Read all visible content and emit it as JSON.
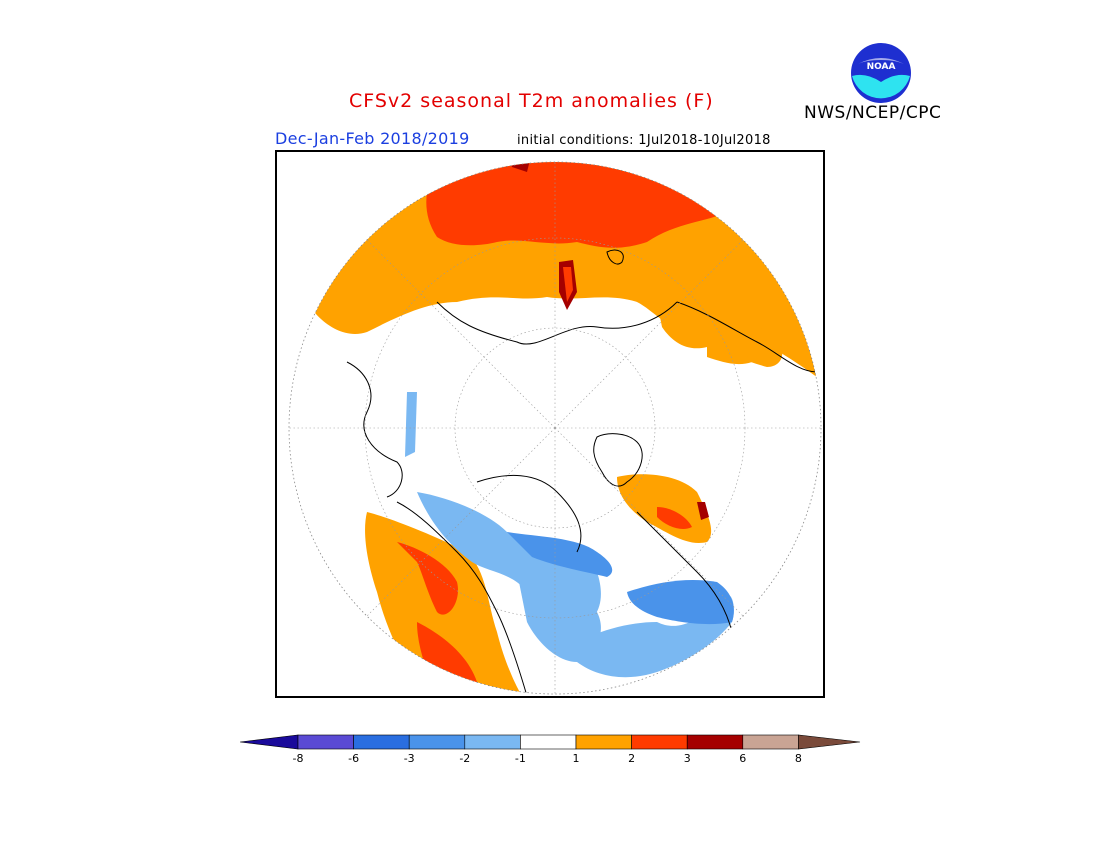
{
  "header": {
    "title": "CFSv2 seasonal T2m anomalies (F)",
    "agency": "NWS/NCEP/CPC",
    "logo_text": "NOAA",
    "season": "Dec-Jan-Feb 2018/2019",
    "initial_conditions": "initial conditions: 1Jul2018-10Jul2018"
  },
  "map": {
    "projection": "north polar stereographic",
    "variable": "2m temperature anomaly",
    "units": "F",
    "features": [
      {
        "region": "Northern Eurasia / Russia",
        "category": "2 to 3",
        "color": "#ff3b00"
      },
      {
        "region": "Central & Western Europe",
        "category": "1 to 2",
        "color": "#ffa200"
      },
      {
        "region": "Alaska & Western Canada",
        "category": "2 to 3",
        "color": "#ff3b00"
      },
      {
        "region": "Central & Eastern Canada",
        "category": "-3 to -1",
        "color": "#6fb3f5"
      },
      {
        "region": "Greenland (south)",
        "category": "1 to 3",
        "color": "#ffa200"
      },
      {
        "region": "Scandinavia",
        "category": "-2 to -1",
        "color": "#6fb3f5"
      }
    ]
  },
  "colorbar": {
    "labels": [
      "-8",
      "-6",
      "-3",
      "-2",
      "-1",
      "1",
      "2",
      "3",
      "6",
      "8"
    ],
    "colors": [
      "#1a0a9b",
      "#5a4ad4",
      "#2a6ee0",
      "#4a93ea",
      "#7ab8f2",
      "#ffffff",
      "#ffa200",
      "#ff3b00",
      "#a50000",
      "#c9a494",
      "#7a4a3a"
    ]
  }
}
